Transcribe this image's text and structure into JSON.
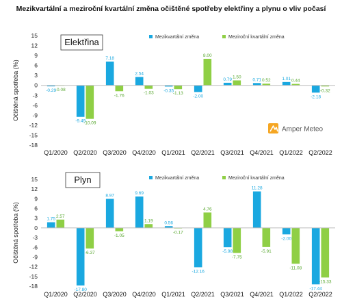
{
  "title": "Mezikvartální a meziroční kvartální změna očištěné spotřeby elektřiny a plynu o vliv počasí",
  "logo": {
    "text": "Amper Meteo",
    "icon": "amper-meteo-logo-icon",
    "color": "#f5a623"
  },
  "colors": {
    "qoq": "#1aa8e0",
    "yoy": "#8fcf45",
    "label_qoq": "#1aa8e0",
    "label_yoy": "#5aa832"
  },
  "chart_data": [
    {
      "type": "bar",
      "title": "Elektřina",
      "ylabel": "Očištěná spotřeba (%)",
      "ylim": [
        -18,
        15
      ],
      "yticks": [
        15,
        12,
        9,
        6,
        3,
        0,
        -3,
        -6,
        -9,
        -12,
        -15,
        -18
      ],
      "grid": false,
      "legend_position": "top",
      "categories": [
        "Q1/2020",
        "Q2/2020",
        "Q3/2020",
        "Q4/2020",
        "Q1/2021",
        "Q2/2021",
        "Q3/2021",
        "Q4/2021",
        "Q1/2022",
        "Q2/2022"
      ],
      "series": [
        {
          "name": "Mezikvartální změna",
          "values": [
            -0.29,
            -9.49,
            7.18,
            2.54,
            -0.35,
            -2.0,
            0.79,
            0.71,
            1.01,
            -2.18
          ]
        },
        {
          "name": "Meziroční kvartální změna",
          "values": [
            -0.08,
            -10.09,
            -1.76,
            -1.03,
            -1.13,
            8.0,
            1.5,
            0.52,
            0.44,
            -0.32
          ]
        }
      ],
      "data_labels": [
        [
          "-0.29",
          "-9.49",
          "7.18",
          "2.54",
          "-0.35",
          "-2.00",
          "0.79",
          "0.71",
          "1.01",
          "-2.18"
        ],
        [
          "-0.08",
          "-10.09",
          "-1.76",
          "-1.03",
          "-1.13",
          "8.00",
          "1.50",
          "0.52",
          "0.44",
          "-0.32"
        ]
      ]
    },
    {
      "type": "bar",
      "title": "Plyn",
      "ylabel": "Očištěná spotřeba (%)",
      "ylim": [
        -18,
        15
      ],
      "yticks": [
        15,
        12,
        9,
        6,
        3,
        0,
        -3,
        -6,
        -9,
        -12,
        -15,
        -18
      ],
      "grid": false,
      "legend_position": "top",
      "categories": [
        "Q1/2020",
        "Q2/2020",
        "Q3/2020",
        "Q4/2020",
        "Q1/2021",
        "Q2/2021",
        "Q3/2021",
        "Q4/2021",
        "Q1/2022",
        "Q2/2022"
      ],
      "series": [
        {
          "name": "Mezikvartální změna",
          "values": [
            1.75,
            -17.8,
            8.97,
            9.69,
            0.56,
            -12.16,
            -5.98,
            11.28,
            -2.0,
            -17.44
          ]
        },
        {
          "name": "Meziroční kvartální změna",
          "values": [
            2.57,
            -6.37,
            -1.05,
            1.19,
            -0.17,
            4.76,
            -7.75,
            -5.91,
            -11.08,
            -15.33
          ]
        }
      ],
      "data_labels": [
        [
          "1.75",
          "-17.80",
          "8.97",
          "9.69",
          "0.56",
          "-12.16",
          "-5.98",
          "11.28",
          "-2.00",
          "-17.44"
        ],
        [
          "2.57",
          "-6.37",
          "-1.05",
          "1.19",
          "-0.17",
          "4.76",
          "-7.75",
          "-5.91",
          "-11.08",
          "-15.33"
        ]
      ]
    }
  ]
}
